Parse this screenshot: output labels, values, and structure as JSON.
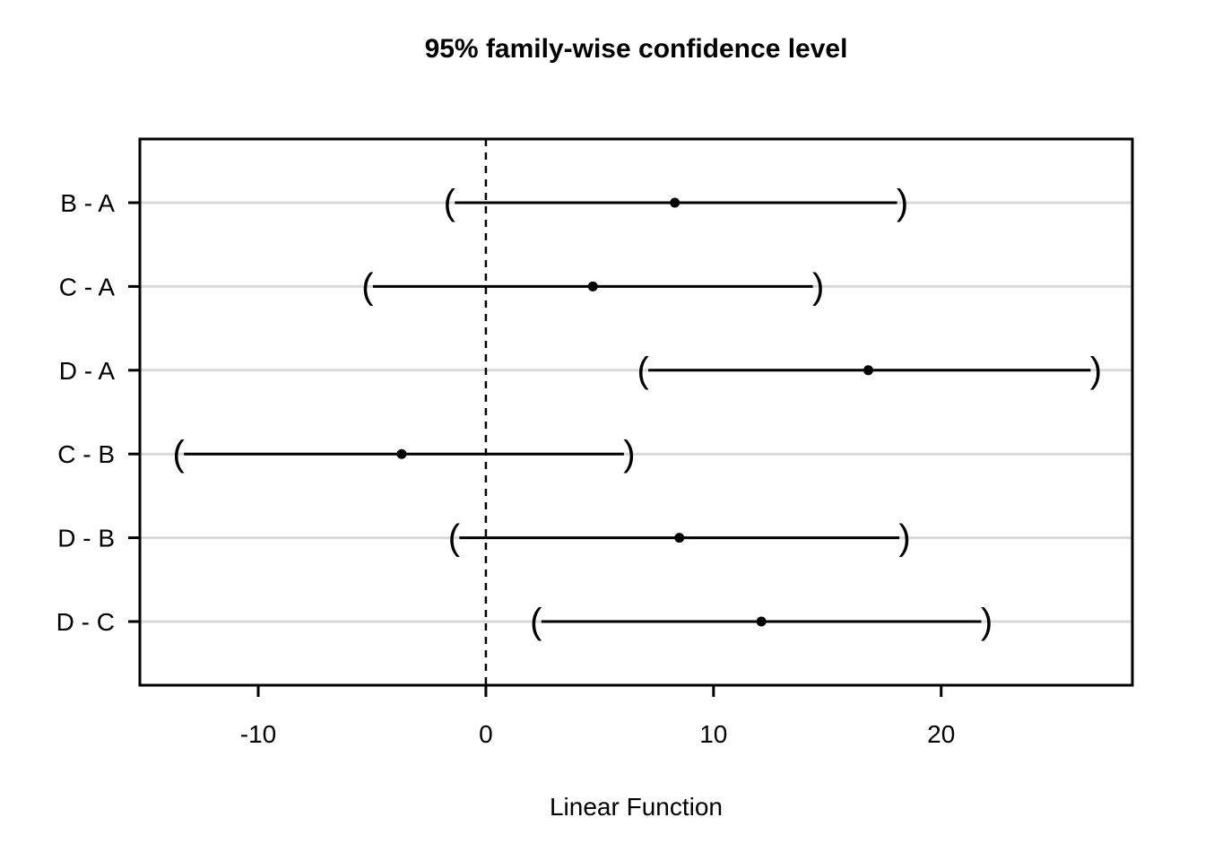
{
  "chart_data": {
    "type": "interval",
    "title": "95% family-wise confidence level",
    "xlabel": "Linear Function",
    "ylabel": "",
    "categories": [
      "B - A",
      "C - A",
      "D - A",
      "C - B",
      "D - B",
      "D - C"
    ],
    "intervals": [
      {
        "label": "B - A",
        "lower": -1.6,
        "estimate": 8.3,
        "upper": 18.3
      },
      {
        "label": "C - A",
        "lower": -5.2,
        "estimate": 4.7,
        "upper": 14.6
      },
      {
        "label": "D - A",
        "lower": 6.9,
        "estimate": 16.8,
        "upper": 26.8
      },
      {
        "label": "C - B",
        "lower": -13.5,
        "estimate": -3.7,
        "upper": 6.3
      },
      {
        "label": "D - B",
        "lower": -1.4,
        "estimate": 8.5,
        "upper": 18.4
      },
      {
        "label": "D - C",
        "lower": 2.2,
        "estimate": 12.1,
        "upper": 22.0
      }
    ],
    "x_ticks": [
      -10,
      0,
      10,
      20
    ],
    "x_tick_labels": [
      "-10",
      "0",
      "10",
      "20"
    ],
    "xlim": [
      -15.2,
      28.4
    ],
    "reference_line_x": 0,
    "grid": "light horizontal line at each row",
    "legend": "none",
    "endpoint_glyphs": [
      "(",
      ")"
    ],
    "colors": {
      "line": "#000000",
      "grid": "#d9d9d9",
      "background": "#ffffff",
      "text": "#000000"
    }
  }
}
